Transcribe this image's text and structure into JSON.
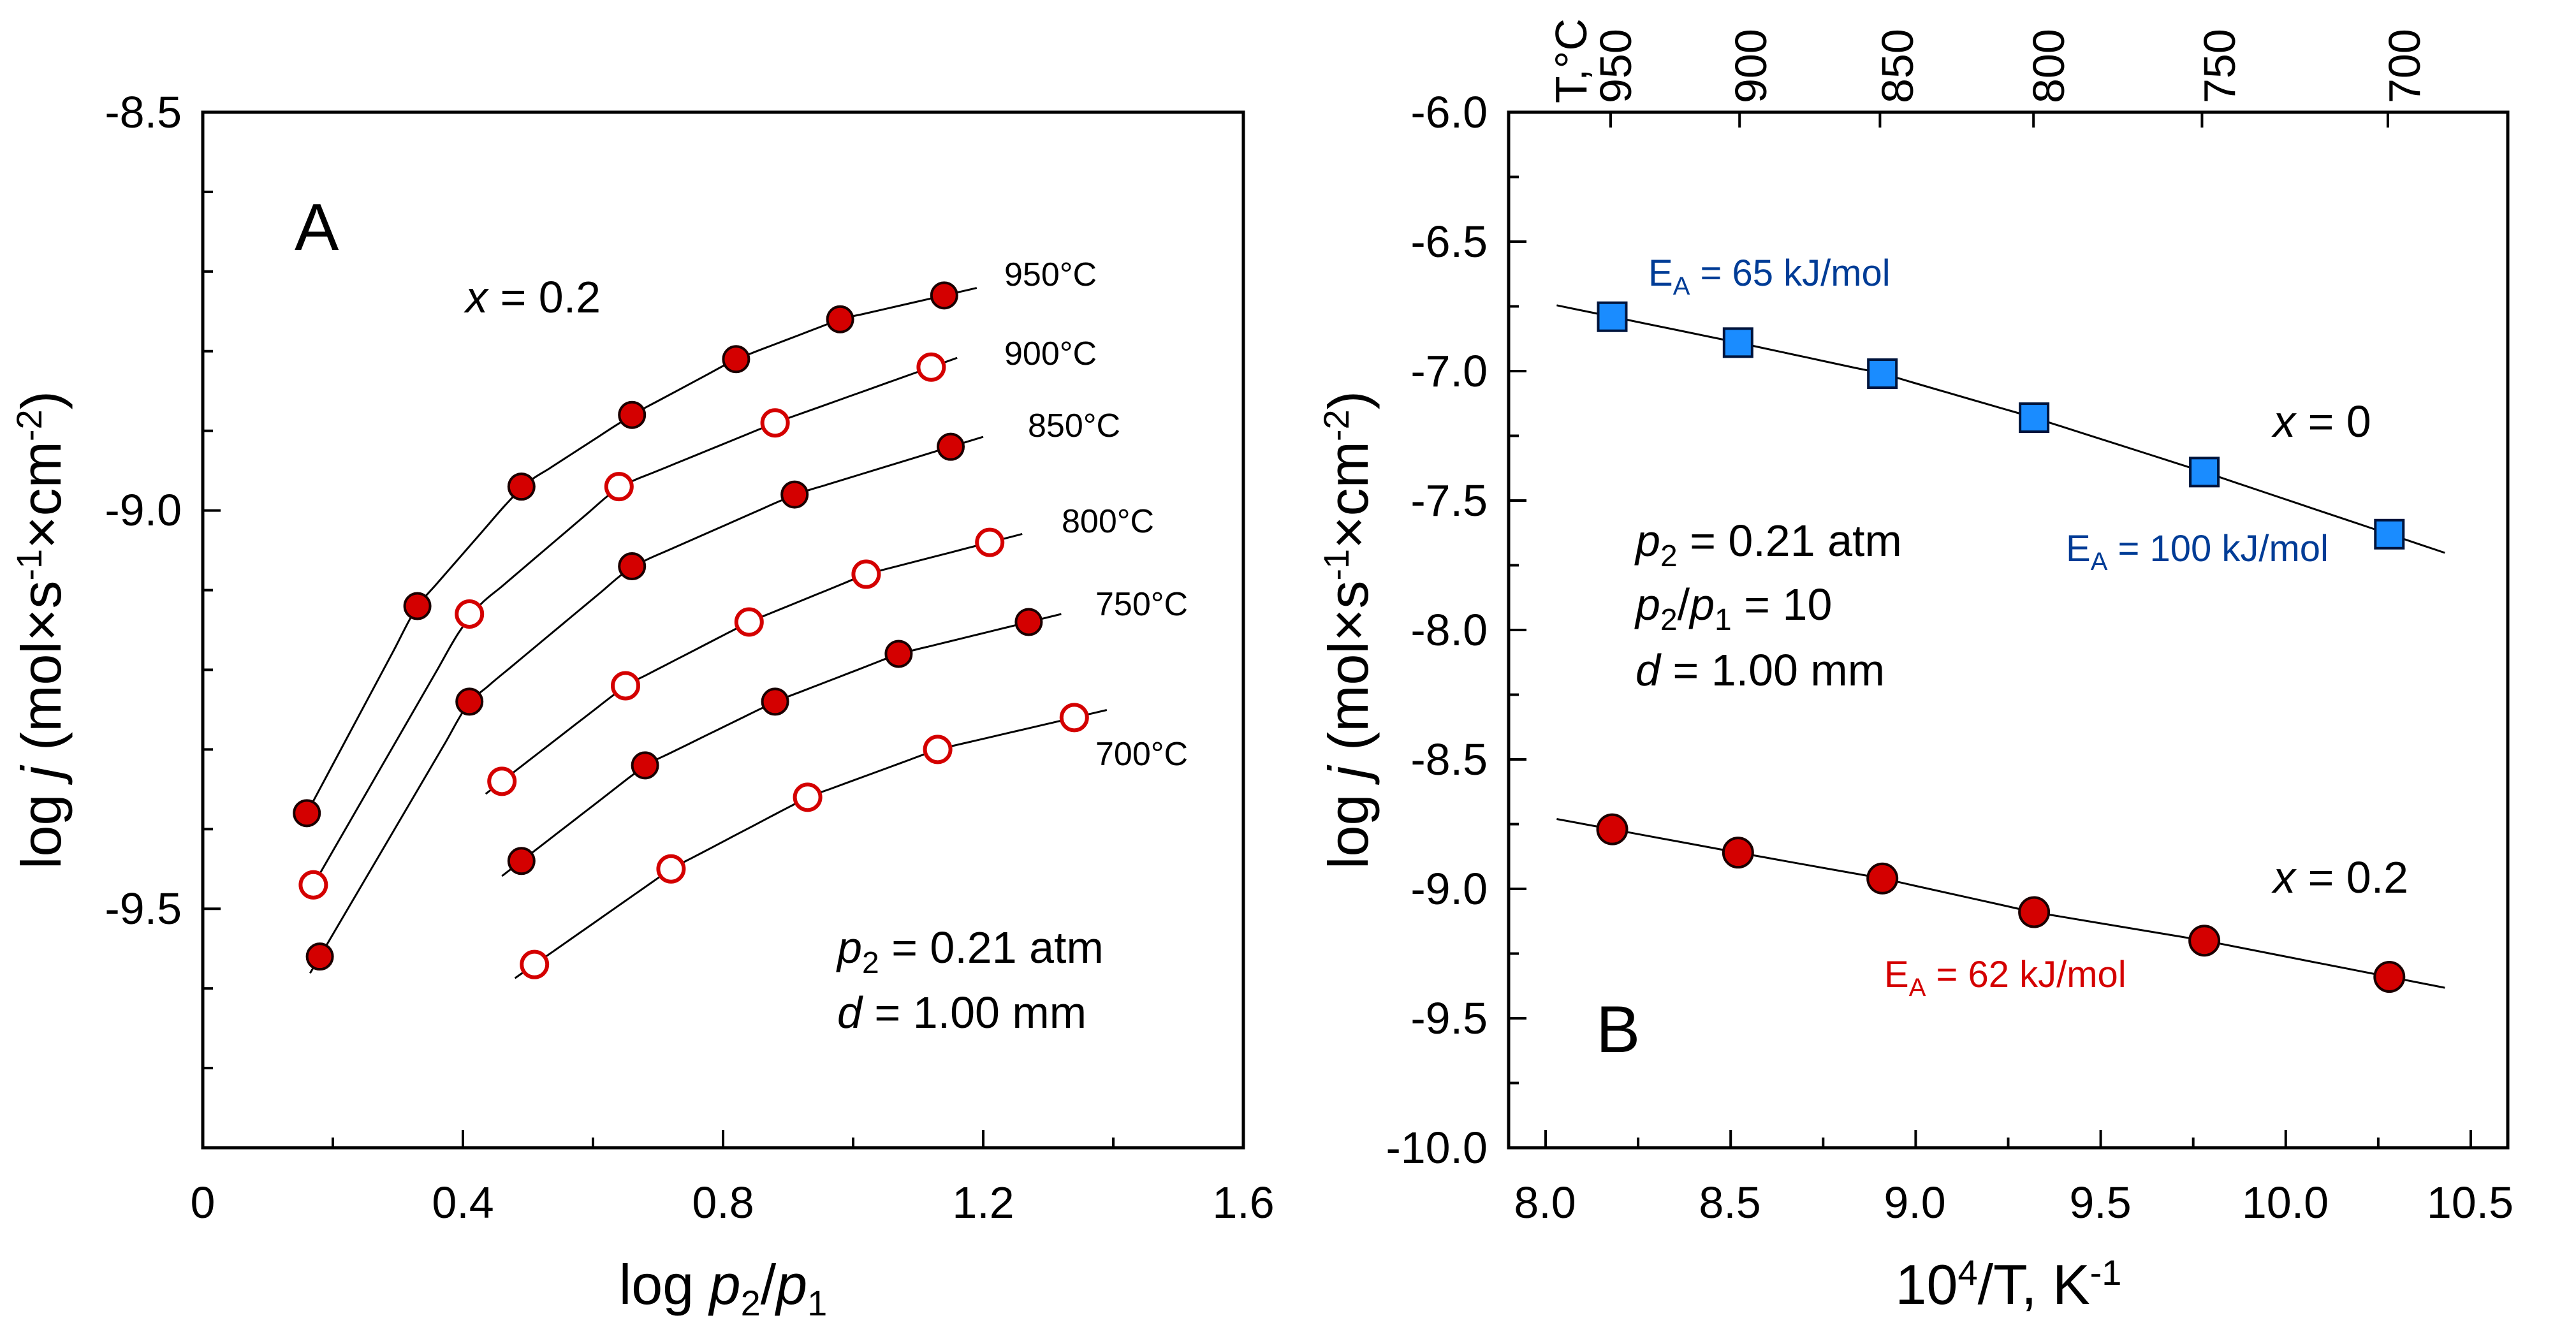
{
  "colors": {
    "red": "#d40000",
    "blue": "#1a8cff",
    "ea_blue": "#003c96",
    "ea_red": "#d40000",
    "axis": "#000000",
    "fit": "#000000"
  },
  "chart_data": [
    {
      "type": "scatter",
      "panel": "A",
      "xlabel": "log p2/p1",
      "ylabel": "log j (mol×s-1×cm-2)",
      "xlim": [
        0,
        1.6
      ],
      "ylim": [
        -9.8,
        -8.5
      ],
      "xticks": [
        "0",
        "0.4",
        "0.8",
        "1.2",
        "1.6"
      ],
      "yticks": [
        "-8.5",
        "-9.0",
        "-9.5"
      ],
      "annotation": "x = 0.2",
      "conditions": [
        "p2 = 0.21 atm",
        "d = 1.00 mm"
      ],
      "series": [
        {
          "name": "950°C",
          "filled": true,
          "x": [
            0.16,
            0.33,
            0.49,
            0.66,
            0.82,
            0.98,
            1.14
          ],
          "y": [
            -9.38,
            -9.12,
            -8.97,
            -8.88,
            -8.81,
            -8.76,
            -8.73
          ],
          "fit_x": [
            0.155,
            1.19
          ]
        },
        {
          "name": "900°C",
          "filled": false,
          "x": [
            0.17,
            0.41,
            0.64,
            0.88,
            1.12
          ],
          "y": [
            -9.47,
            -9.13,
            -8.97,
            -8.89,
            -8.82
          ],
          "fit_x": [
            0.16,
            1.16
          ]
        },
        {
          "name": "850°C",
          "filled": true,
          "x": [
            0.18,
            0.41,
            0.66,
            0.91,
            1.15
          ],
          "y": [
            -9.56,
            -9.24,
            -9.07,
            -8.98,
            -8.92
          ],
          "fit_x": [
            0.165,
            1.2
          ]
        },
        {
          "name": "800°C",
          "filled": false,
          "x": [
            0.46,
            0.65,
            0.84,
            1.02,
            1.21
          ],
          "y": [
            -9.34,
            -9.22,
            -9.14,
            -9.08,
            -9.04
          ],
          "fit_x": [
            0.435,
            1.26
          ]
        },
        {
          "name": "750°C",
          "filled": true,
          "x": [
            0.49,
            0.68,
            0.88,
            1.07,
            1.27
          ],
          "y": [
            -9.44,
            -9.32,
            -9.24,
            -9.18,
            -9.14
          ],
          "fit_x": [
            0.46,
            1.32
          ]
        },
        {
          "name": "700°C",
          "filled": false,
          "x": [
            0.51,
            0.72,
            0.93,
            1.13,
            1.34
          ],
          "y": [
            -9.57,
            -9.45,
            -9.36,
            -9.3,
            -9.26
          ],
          "fit_x": [
            0.48,
            1.39
          ]
        }
      ]
    },
    {
      "type": "scatter",
      "panel": "B",
      "xlabel": "10^4/T, K^-1",
      "ylabel": "log j (mol×s-1×cm-2)",
      "xlim": [
        7.9,
        10.6
      ],
      "ylim": [
        -10.0,
        -6.0
      ],
      "xticks": [
        "8.0",
        "8.5",
        "9.0",
        "9.5",
        "10.0",
        "10.5"
      ],
      "yticks": [
        "-6.0",
        "-6.5",
        "-7.0",
        "-7.5",
        "-8.0",
        "-8.5",
        "-9.0",
        "-9.5",
        "-10.0"
      ],
      "top_axis_label": "T,°C",
      "top_ticks": [
        "950",
        "900",
        "850",
        "800",
        "750",
        "700"
      ],
      "conditions": [
        "p2 = 0.21 atm",
        "p2/p1 = 10",
        "d = 1.00 mm"
      ],
      "series": [
        {
          "name": "x = 0",
          "marker": "square",
          "x": [
            8.18,
            8.52,
            8.91,
            9.32,
            9.78,
            10.28
          ],
          "y": [
            -6.79,
            -6.89,
            -7.01,
            -7.18,
            -7.39,
            -7.63
          ],
          "ea_high_T": "EA = 65 kJ/mol",
          "ea_low_T": "EA = 100 kJ/mol"
        },
        {
          "name": "x = 0.2",
          "marker": "circle",
          "x": [
            8.18,
            8.52,
            8.91,
            9.32,
            9.78,
            10.28
          ],
          "y": [
            -8.77,
            -8.86,
            -8.96,
            -9.09,
            -9.2,
            -9.34
          ],
          "ea": "EA = 62 kJ/mol"
        }
      ]
    }
  ]
}
